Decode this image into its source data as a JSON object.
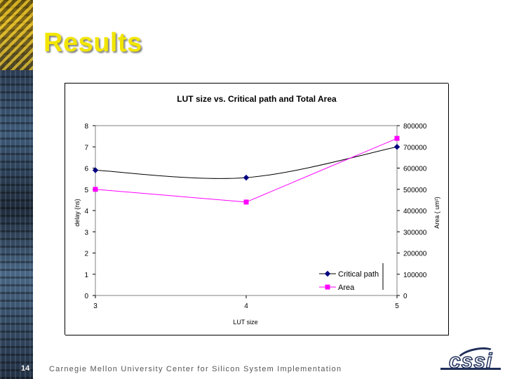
{
  "slide": {
    "title": "Results",
    "page_number": "14",
    "footer": "Carnegie Mellon University Center for Silicon System Implementation",
    "logo_text": "cssi",
    "title_color": "#f2e600"
  },
  "chart_data": {
    "type": "line",
    "title": "LUT size vs. Critical path and Total Area",
    "xlabel": "LUT size",
    "ylabel_left": "delay (ns)",
    "ylabel_right": "Area ( um²)",
    "x": [
      3,
      4,
      5
    ],
    "x_ticks": [
      "3",
      "4",
      "5"
    ],
    "ylim_left": [
      0,
      8
    ],
    "y_ticks_left": [
      "0",
      "1",
      "2",
      "3",
      "4",
      "5",
      "6",
      "7",
      "8"
    ],
    "ylim_right": [
      0,
      800000
    ],
    "y_ticks_right": [
      "0",
      "100000",
      "200000",
      "300000",
      "400000",
      "500000",
      "600000",
      "700000",
      "800000"
    ],
    "grid": false,
    "legend_position": "bottom-right",
    "series": [
      {
        "name": "Critical path",
        "axis": "left",
        "values": [
          5.9,
          5.55,
          7.0
        ],
        "color": "#000080",
        "marker": "diamond"
      },
      {
        "name": "Area",
        "axis": "right",
        "values": [
          500000,
          440000,
          740000
        ],
        "color": "#ff00ff",
        "marker": "square"
      }
    ]
  }
}
